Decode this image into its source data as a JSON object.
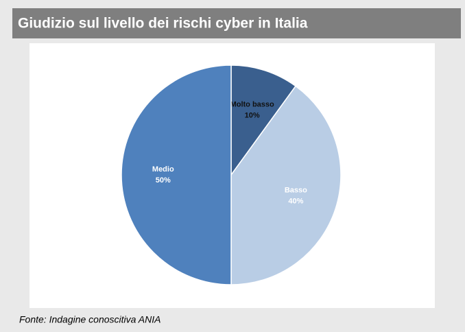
{
  "chart_data": {
    "type": "pie",
    "title": "Giudizio sul livello dei rischi cyber in Italia",
    "categories": [
      "Molto basso",
      "Basso",
      "Medio"
    ],
    "values": [
      10,
      40,
      50
    ],
    "value_labels": [
      "10%",
      "40%",
      "50%"
    ],
    "colors": [
      "#3a5f8e",
      "#b9cde5",
      "#4f81bd"
    ],
    "source": "Fonte: Indagine conoscitiva ANIA"
  }
}
